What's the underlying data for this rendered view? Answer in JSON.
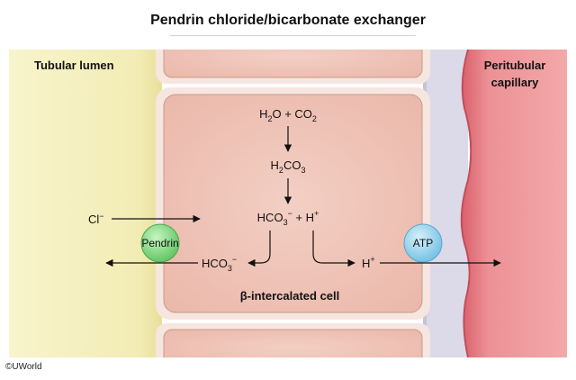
{
  "title": "Pendrin chloride/bicarbonate exchanger",
  "credit": "©UWorld",
  "regions": {
    "lumen": "Tubular lumen",
    "capillary_line1": "Peritubular",
    "capillary_line2": "capillary",
    "cell": "β-intercalated cell"
  },
  "reactions": {
    "step1": {
      "a": "H",
      "a_sub": "2",
      "b": "O + CO",
      "b_sub": "2"
    },
    "step2": {
      "a": "H",
      "a_sub": "2",
      "b": "CO",
      "b_sub": "3"
    },
    "step3": {
      "a": "HCO",
      "a_sub": "3",
      "a_sup": "−",
      "b": " + H",
      "b_sup": "+"
    }
  },
  "ions": {
    "chloride": {
      "base": "Cl",
      "sup": "−"
    },
    "bicarbonate_out": {
      "base": "HCO",
      "sub": "3",
      "sup": "−"
    },
    "proton_out": {
      "base": "H",
      "sup": "+"
    }
  },
  "transporters": {
    "pendrin": "Pendrin",
    "atp": "ATP"
  },
  "colors": {
    "lumen": "#f6f1c0",
    "cell": "#f0c8bc",
    "interstitium": "#d9d6e6",
    "capillary": "#e9878c",
    "pendrin": "#7cd67e",
    "atp": "#8fd0ec"
  }
}
